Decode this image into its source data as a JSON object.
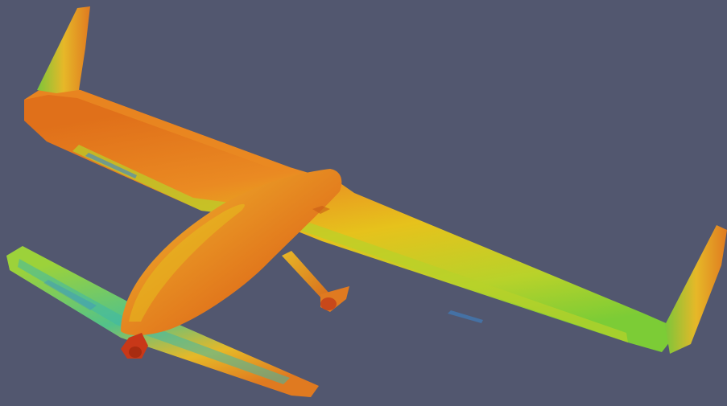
{
  "viewport": {
    "background": "#52576f",
    "subject": "aircraft-surface-render"
  },
  "colors": {
    "hot_orange": "#e0701a",
    "orange": "#ea8a22",
    "yellow": "#e6c21c",
    "yellow_green": "#b8d22a",
    "green": "#6cc63a",
    "teal": "#3fb8a8",
    "blue": "#3a86d0",
    "red": "#c83818"
  }
}
